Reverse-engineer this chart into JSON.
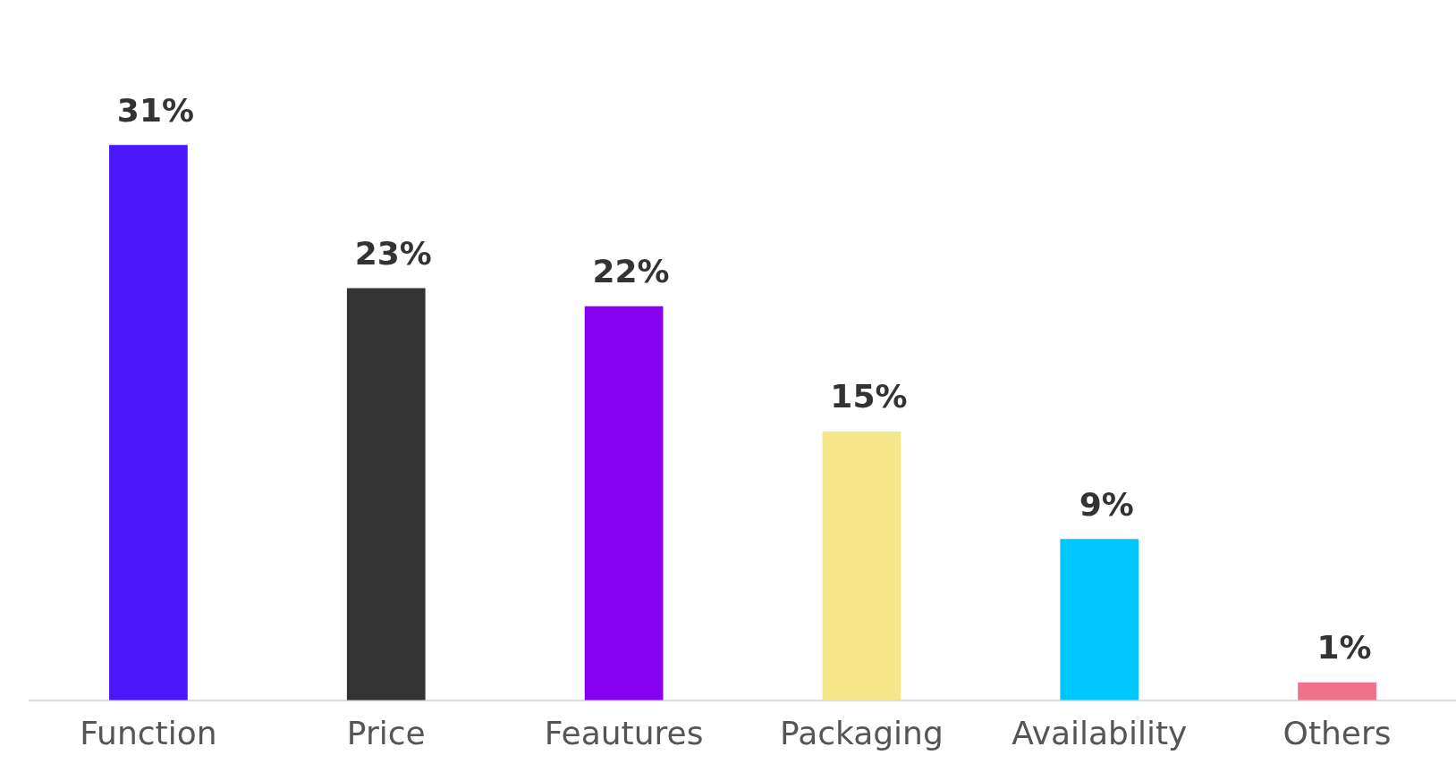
{
  "chart_data": {
    "type": "bar",
    "categories": [
      "Function",
      "Price",
      "Feautures",
      "Packaging",
      "Availability",
      "Others"
    ],
    "values": [
      31,
      23,
      22,
      15,
      9,
      1
    ],
    "colors": [
      "#4a17fb",
      "#333333",
      "#8800f0",
      "#f5e68a",
      "#00c8ff",
      "#f0718b"
    ],
    "value_labels": [
      "31%",
      "23%",
      "22%",
      "15%",
      "9%",
      "1%"
    ],
    "grid": false,
    "legend": false
  }
}
